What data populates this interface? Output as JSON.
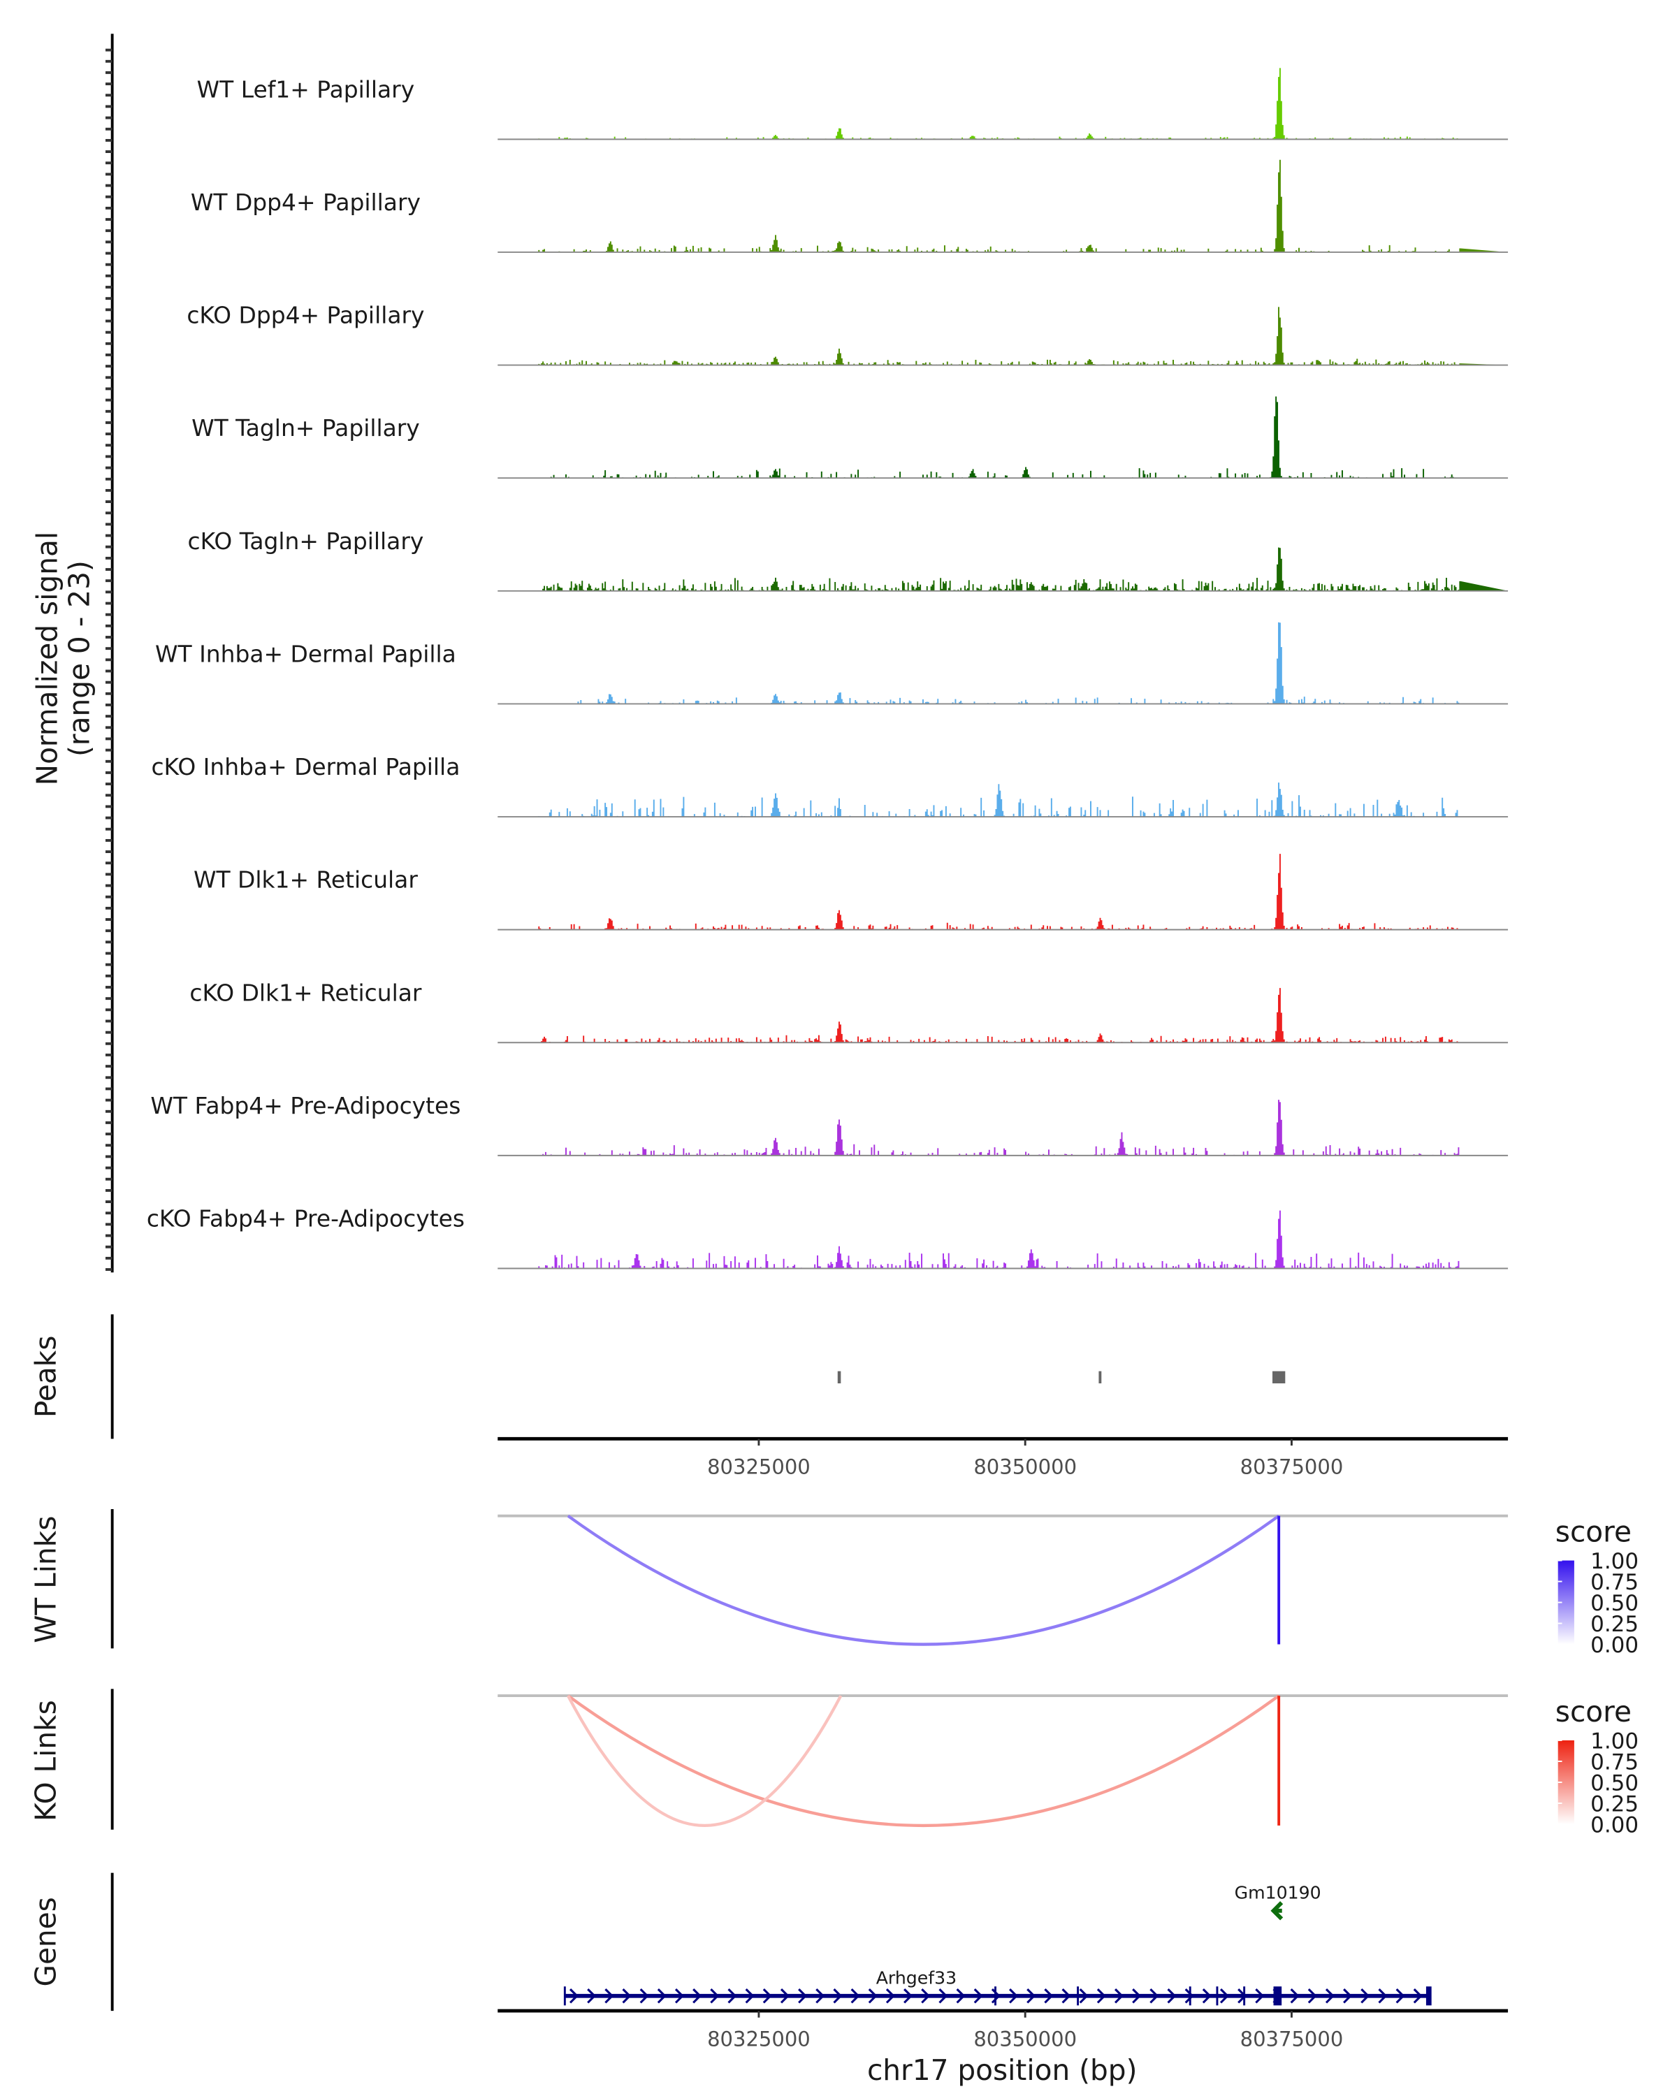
{
  "chart_data": {
    "type": "area",
    "title": "",
    "ylabel": "Normalized signal",
    "ylabel_range": "(range 0 - 23)",
    "ylim": [
      0,
      23
    ],
    "xlabel": "chr17 position (bp)",
    "xlim": [
      80300500,
      80395300
    ],
    "xticks": [
      80325000,
      80350000,
      80375000
    ],
    "xtick_labels": [
      "80325000",
      "80350000",
      "80375000"
    ],
    "coverage_tracks": [
      {
        "name": "WT Lef1+ Papillary",
        "color": "#66cc00",
        "background": 0.3,
        "density": 0.35,
        "peaks": [
          [
            80373800,
            18
          ],
          [
            80332500,
            3
          ],
          [
            80326500,
            1
          ],
          [
            80345000,
            1
          ],
          [
            80356000,
            1.5
          ]
        ]
      },
      {
        "name": "WT Dpp4+ Papillary",
        "color": "#4f8f00",
        "background": 0.8,
        "density": 0.35,
        "peaks": [
          [
            80373800,
            21
          ],
          [
            80326500,
            4
          ],
          [
            80332500,
            3
          ],
          [
            80311000,
            2.5
          ],
          [
            80356000,
            2
          ]
        ]
      },
      {
        "name": "cKO Dpp4+ Papillary",
        "color": "#4c8a00",
        "background": 0.7,
        "density": 0.6,
        "peaks": [
          [
            80373800,
            14
          ],
          [
            80332500,
            4
          ],
          [
            80326500,
            2
          ],
          [
            80356000,
            1.5
          ]
        ]
      },
      {
        "name": "WT Tagln+ Papillary",
        "color": "#0b6100",
        "background": 1.2,
        "density": 0.25,
        "peaks": [
          [
            80373500,
            20
          ],
          [
            80326500,
            2
          ],
          [
            80350000,
            2.5
          ],
          [
            80345000,
            2
          ]
        ]
      },
      {
        "name": "cKO Tagln+ Papillary",
        "color": "#1c6a00",
        "background": 1.5,
        "density": 0.7,
        "peaks": [
          [
            80373800,
            12
          ],
          [
            80326500,
            3
          ],
          [
            80350500,
            2
          ]
        ]
      },
      {
        "name": "WT Inhba+ Dermal Papilla",
        "color": "#5aadeb",
        "background": 0.8,
        "density": 0.3,
        "peaks": [
          [
            80373800,
            21
          ],
          [
            80311000,
            2.5
          ],
          [
            80326500,
            2.5
          ],
          [
            80332500,
            3
          ]
        ]
      },
      {
        "name": "cKO Inhba+ Dermal Papilla",
        "color": "#5aadeb",
        "background": 2.5,
        "density": 0.3,
        "peaks": [
          [
            80373800,
            8
          ],
          [
            80347500,
            8
          ],
          [
            80326500,
            6
          ],
          [
            80385000,
            4
          ]
        ]
      },
      {
        "name": "WT Dlk1+ Reticular",
        "color": "#ee2020",
        "background": 0.8,
        "density": 0.35,
        "peaks": [
          [
            80373800,
            17
          ],
          [
            80332500,
            5
          ],
          [
            80357000,
            3
          ],
          [
            80311000,
            3
          ]
        ]
      },
      {
        "name": "cKO Dlk1+ Reticular",
        "color": "#ee2020",
        "background": 0.9,
        "density": 0.5,
        "peaks": [
          [
            80373800,
            14
          ],
          [
            80332500,
            5
          ],
          [
            80357000,
            2
          ]
        ]
      },
      {
        "name": "WT Fabp4+ Pre-Adipocytes",
        "color": "#aa33dd",
        "background": 1.5,
        "density": 0.3,
        "peaks": [
          [
            80373800,
            14
          ],
          [
            80332500,
            10
          ],
          [
            80359000,
            5
          ],
          [
            80326500,
            4
          ]
        ]
      },
      {
        "name": "cKO Fabp4+ Pre-Adipocytes",
        "color": "#aa33ee",
        "background": 2.0,
        "density": 0.4,
        "peaks": [
          [
            80373800,
            13
          ],
          [
            80332500,
            5
          ],
          [
            80350500,
            5
          ],
          [
            80313500,
            4
          ]
        ]
      }
    ],
    "peaks_track": {
      "label": "Peaks",
      "color": "#666666",
      "regions": [
        [
          80332400,
          80332700
        ],
        [
          80356900,
          80357100
        ],
        [
          80373200,
          80374400
        ]
      ]
    },
    "wt_links": {
      "label": "WT Links",
      "links": [
        {
          "start": 80307100,
          "end": 80373800,
          "score": 0.5
        },
        {
          "start": 80373800,
          "end": 80373850,
          "score": 1.0
        }
      ],
      "legend_title": "score",
      "legend_ticks": [
        "1.00",
        "0.75",
        "0.50",
        "0.25",
        "0.00"
      ],
      "color_high": "#3311ee",
      "color_low": "#ffffff"
    },
    "ko_links": {
      "label": "KO Links",
      "links": [
        {
          "start": 80307100,
          "end": 80373800,
          "score": 0.4
        },
        {
          "start": 80307100,
          "end": 80332700,
          "score": 0.25
        },
        {
          "start": 80373800,
          "end": 80373850,
          "score": 0.9
        }
      ],
      "legend_title": "score",
      "legend_ticks": [
        "1.00",
        "0.75",
        "0.50",
        "0.25",
        "0.00"
      ],
      "color_high": "#ee2211",
      "color_low": "#ffffff"
    },
    "genes_track": {
      "label": "Genes",
      "genes": [
        {
          "name": "Gm10190",
          "start": 80373300,
          "end": 80374100,
          "strand": "-",
          "color": "#0e6e0e"
        },
        {
          "name": "Arhgef33",
          "start": 80306800,
          "end": 80388000,
          "strand": "+",
          "color": "#000080"
        }
      ]
    }
  }
}
